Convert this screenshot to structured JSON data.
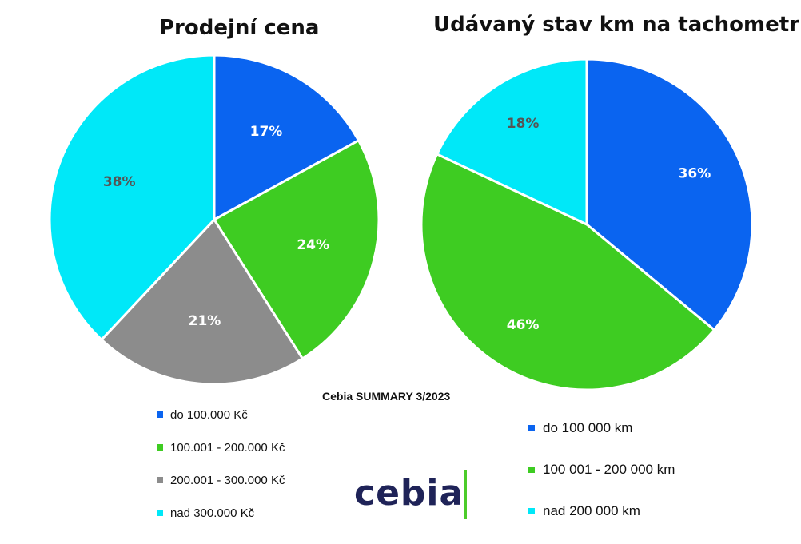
{
  "source": "Cebia SUMMARY 3/2023",
  "logo": {
    "text": "cebia",
    "accent_color": "#4ccc2a",
    "text_color": "#1f2358"
  },
  "chart_data": [
    {
      "type": "pie",
      "title": "Prodejní cena",
      "start_angle_deg": 0,
      "direction": "clockwise",
      "categories": [
        "do 100.000 Kč",
        "100.001 - 200.000 Kč",
        "200.001 - 300.000 Kč",
        "nad 300.000 Kč"
      ],
      "values": [
        17,
        24,
        21,
        38
      ],
      "labels": [
        "17%",
        "24%",
        "21%",
        "38%"
      ],
      "colors": [
        "#0a64f0",
        "#3ecc22",
        "#8c8c8c",
        "#00e8f8"
      ],
      "label_colors": [
        "#ffffff",
        "#ffffff",
        "#ffffff",
        "#555555"
      ],
      "legend_position": "bottom"
    },
    {
      "type": "pie",
      "title": "Udávaný stav km na tachometru",
      "start_angle_deg": 0,
      "direction": "clockwise",
      "categories": [
        "do 100 000 km",
        "100 001 - 200 000 km",
        "nad 200 000 km"
      ],
      "values": [
        36,
        46,
        18
      ],
      "labels": [
        "36%",
        "46%",
        "18%"
      ],
      "colors": [
        "#0a64f0",
        "#3ecc22",
        "#00e8f8"
      ],
      "label_colors": [
        "#ffffff",
        "#ffffff",
        "#555555"
      ],
      "legend_position": "bottom-right"
    }
  ]
}
